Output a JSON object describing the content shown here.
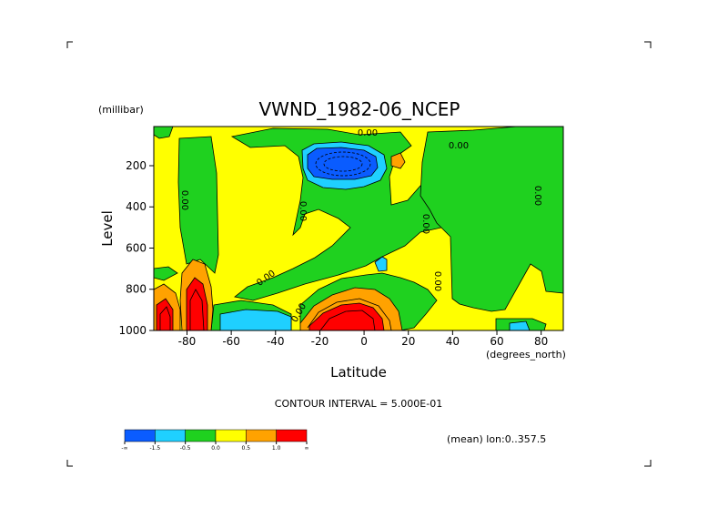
{
  "chart_data": {
    "type": "contour",
    "title": "VWND_1982-06_NCEP",
    "xlabel": "Latitude",
    "ylabel": "Level",
    "y_units": "(millibar)",
    "x_units": "(degrees_north)",
    "xlim": [
      -95,
      90
    ],
    "ylim": [
      1000,
      10
    ],
    "x_ticks": [
      "-80",
      "-60",
      "-40",
      "-20",
      "0",
      "20",
      "40",
      "60",
      "80"
    ],
    "x_tick_values": [
      -80,
      -60,
      -40,
      -20,
      0,
      20,
      40,
      60,
      80
    ],
    "y_ticks": [
      "200",
      "400",
      "600",
      "800",
      "1000"
    ],
    "y_tick_values": [
      200,
      400,
      600,
      800,
      1000
    ],
    "contour_interval_text": "CONTOUR INTERVAL = 5.000E-01",
    "footnote": "(mean) lon:0..357.5",
    "contour_labels": [
      "0.00",
      "0.00",
      "0.00",
      "0.00",
      "0.00",
      "0.00",
      "0.00",
      "0.00",
      "0.00"
    ],
    "levels": [
      "-∞",
      "-1.5",
      "-0.5",
      "0.0",
      "0.5",
      "1.0",
      "∞"
    ],
    "colorbar_tick_labels": [
      "-∞",
      "-1.5",
      "-0.5",
      "0.0",
      "0.5",
      "1.0",
      "∞"
    ],
    "colorbar_colors": [
      "#0a5cff",
      "#1fd0ff",
      "#1fd11f",
      "#ffff00",
      "#ffa200",
      "#ff0000"
    ],
    "band_colors": {
      "dark_blue": "#0a5cff",
      "cyan": "#1fd0ff",
      "green": "#1fd11f",
      "yellow": "#ffff00",
      "orange": "#ffa200",
      "red": "#ff0000"
    }
  }
}
